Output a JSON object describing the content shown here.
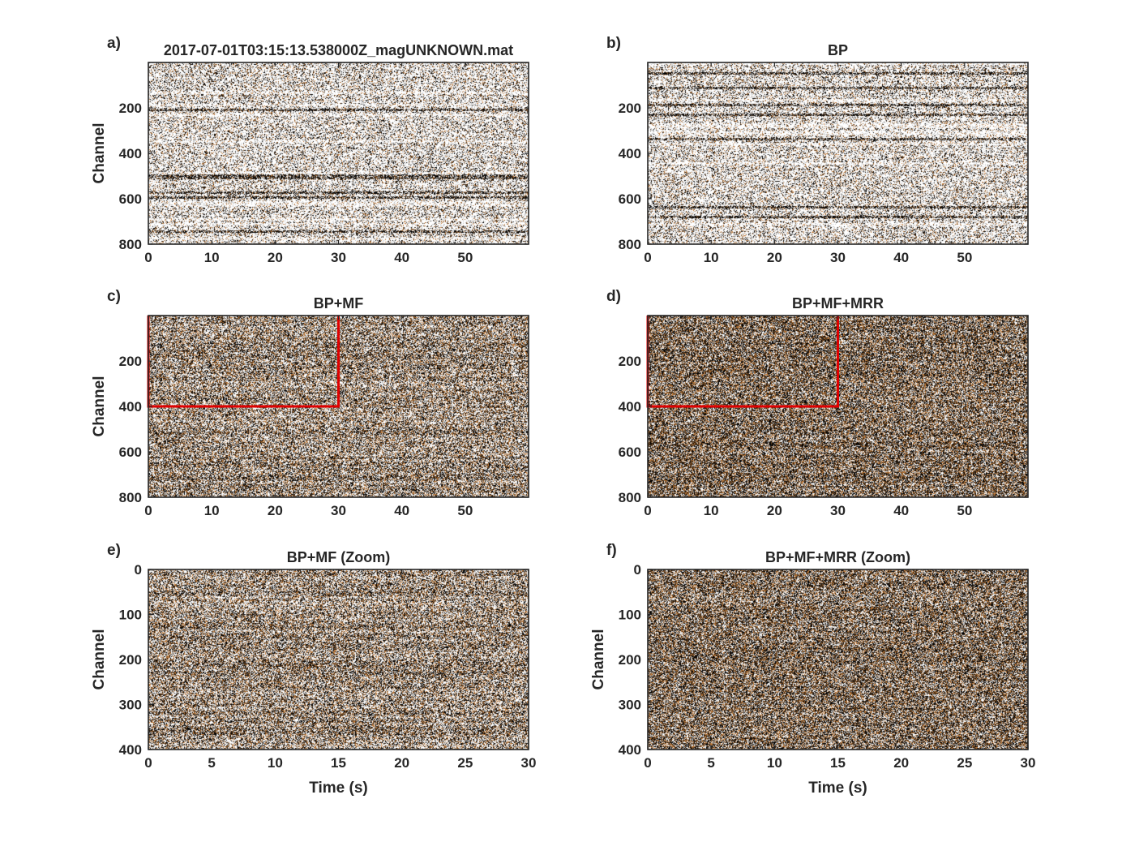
{
  "figure": {
    "background": "#ffffff",
    "palette": [
      "#000000",
      "#3a2a1c",
      "#8a5a2b",
      "#c27c3a",
      "#bfbfbf",
      "#ffffff"
    ],
    "overlay_color": "#e00000"
  },
  "chart_data": [
    {
      "panel_label": "a)",
      "type": "heatmap",
      "title": "2017-07-01T03:15:13.538000Z_magUNKNOWN.mat",
      "xlabel": "",
      "ylabel": "Channel",
      "xlim": [
        0,
        60
      ],
      "ylim": [
        0,
        800
      ],
      "y_reversed": true,
      "xticks": [
        0,
        10,
        20,
        30,
        40,
        50
      ],
      "yticks": [
        200,
        400,
        600,
        800
      ],
      "texture": "horizontal-banded",
      "overlay": null
    },
    {
      "panel_label": "b)",
      "type": "heatmap",
      "title": "BP",
      "xlabel": "",
      "ylabel": "",
      "xlim": [
        0,
        60
      ],
      "ylim": [
        0,
        800
      ],
      "y_reversed": true,
      "xticks": [
        0,
        10,
        20,
        30,
        40,
        50
      ],
      "yticks": [
        200,
        400,
        600,
        800
      ],
      "texture": "horizontal-banded",
      "overlay": null
    },
    {
      "panel_label": "c)",
      "type": "heatmap",
      "title": "BP+MF",
      "xlabel": "",
      "ylabel": "Channel",
      "xlim": [
        0,
        60
      ],
      "ylim": [
        0,
        800
      ],
      "y_reversed": true,
      "xticks": [
        0,
        10,
        20,
        30,
        40,
        50
      ],
      "yticks": [
        200,
        400,
        600,
        800
      ],
      "texture": "medium-noise",
      "overlay": {
        "type": "box",
        "x": [
          0,
          30
        ],
        "y": [
          0,
          400
        ]
      }
    },
    {
      "panel_label": "d)",
      "type": "heatmap",
      "title": "BP+MF+MRR",
      "xlabel": "",
      "ylabel": "",
      "xlim": [
        0,
        60
      ],
      "ylim": [
        0,
        800
      ],
      "y_reversed": true,
      "xticks": [
        0,
        10,
        20,
        30,
        40,
        50
      ],
      "yticks": [
        200,
        400,
        600,
        800
      ],
      "texture": "strong-noise",
      "overlay": {
        "type": "box",
        "x": [
          0,
          30
        ],
        "y": [
          0,
          400
        ]
      }
    },
    {
      "panel_label": "e)",
      "type": "heatmap",
      "title": "BP+MF (Zoom)",
      "xlabel": "Time (s)",
      "ylabel": "Channel",
      "xlim": [
        0,
        30
      ],
      "ylim": [
        0,
        400
      ],
      "y_reversed": true,
      "xticks": [
        0,
        5,
        10,
        15,
        20,
        25,
        30
      ],
      "yticks": [
        0,
        100,
        200,
        300,
        400
      ],
      "texture": "medium-noise",
      "overlay": null
    },
    {
      "panel_label": "f)",
      "type": "heatmap",
      "title": "BP+MF+MRR (Zoom)",
      "xlabel": "Time (s)",
      "ylabel": "Channel",
      "xlim": [
        0,
        30
      ],
      "ylim": [
        0,
        400
      ],
      "y_reversed": true,
      "xticks": [
        0,
        5,
        10,
        15,
        20,
        25,
        30
      ],
      "yticks": [
        0,
        100,
        200,
        300,
        400
      ],
      "texture": "strong-noise",
      "overlay": null
    }
  ]
}
